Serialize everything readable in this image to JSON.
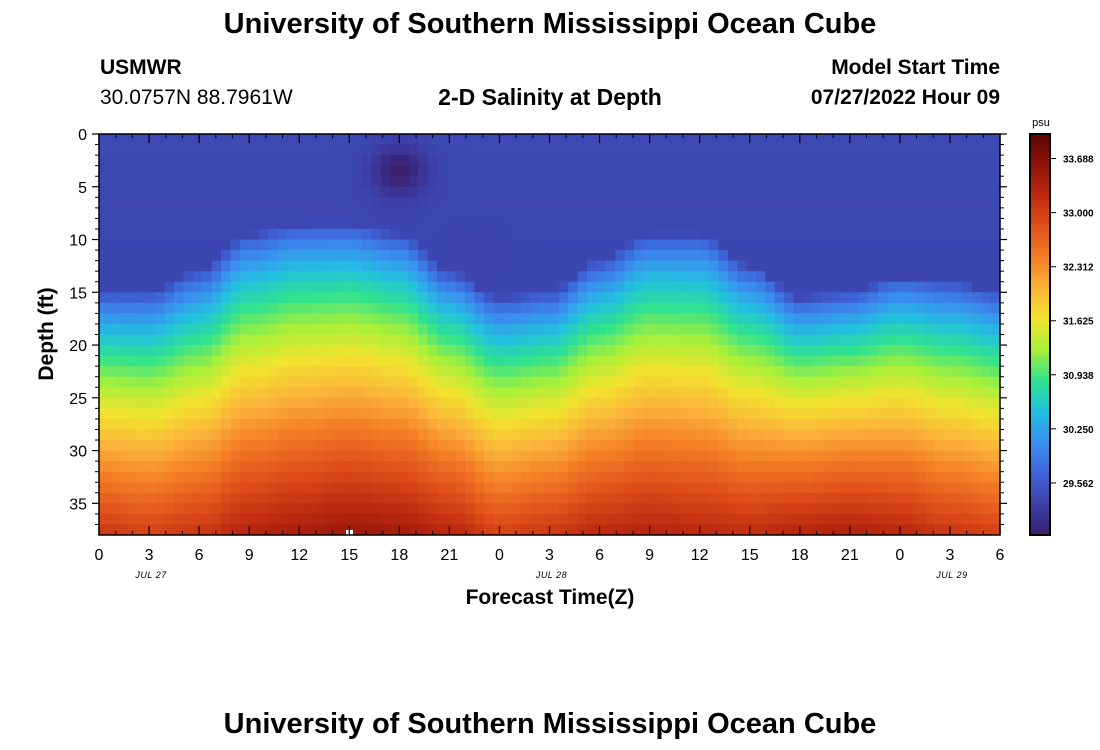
{
  "header": {
    "title": "University of Southern Mississippi Ocean Cube",
    "station_name": "USMWR",
    "station_coords": "30.0757N  88.7961W",
    "subtitle": "2-D Salinity at Depth",
    "model_start_label": "Model Start Time",
    "model_start_value": "07/27/2022 Hour 09"
  },
  "footer": {
    "title": "University of Southern Mississippi Ocean Cube"
  },
  "chart_data": {
    "type": "heatmap",
    "title": "2-D Salinity at Depth",
    "xlabel": "Forecast Time(Z)",
    "ylabel": "Depth (ft)",
    "x_tick_labels": [
      "0",
      "3",
      "6",
      "9",
      "12",
      "15",
      "18",
      "21",
      "0",
      "3",
      "6",
      "9",
      "12",
      "15",
      "18",
      "21",
      "0",
      "3",
      "6"
    ],
    "x_range_hours": [
      0,
      54
    ],
    "date_labels": [
      {
        "label": "JUL 27",
        "hour": 3
      },
      {
        "label": "JUL 28",
        "hour": 27
      },
      {
        "label": "JUL 29",
        "hour": 51
      }
    ],
    "y_tick_labels": [
      "0",
      "5",
      "10",
      "15",
      "20",
      "25",
      "30",
      "35"
    ],
    "y_range_ft": [
      0,
      38
    ],
    "colorbar": {
      "unit": "psu",
      "min": 28.9,
      "max": 34.0,
      "tick_labels": [
        "33.688",
        "33.000",
        "32.312",
        "31.625",
        "30.938",
        "30.250",
        "29.562"
      ],
      "tick_values": [
        33.688,
        33.0,
        32.312,
        31.625,
        30.938,
        30.25,
        29.562
      ],
      "colors": [
        "#3a1f6e",
        "#3c3fa8",
        "#3e63d6",
        "#3a8fef",
        "#23c0e0",
        "#2fe28f",
        "#a6f03a",
        "#f2e42e",
        "#fbb53a",
        "#f47d26",
        "#e0501a",
        "#bd2a10",
        "#8e1208",
        "#5c0505"
      ]
    },
    "cross_section": {
      "description_hours": [
        0,
        3,
        6,
        9,
        12,
        15,
        18,
        21,
        24,
        27,
        30,
        33,
        36,
        39,
        42,
        45,
        48,
        51,
        54
      ],
      "boundary_depth_ft": [
        23,
        23,
        21,
        17.5,
        16.5,
        16.5,
        17.5,
        21,
        23.5,
        23,
        20,
        17.5,
        17.5,
        20.5,
        23.5,
        23,
        21.5,
        22,
        23
      ],
      "bottom_salinity_psu": [
        33.3,
        33.2,
        33.3,
        33.5,
        33.6,
        33.7,
        33.65,
        33.5,
        33.2,
        33.3,
        33.45,
        33.5,
        33.45,
        33.4,
        33.55,
        33.6,
        33.5,
        33.3,
        33.2
      ],
      "surface_salinity_psu": 29.4,
      "low_salinity_patches": [
        {
          "hour": 18,
          "depth_ft": 3.5,
          "salinity_psu": 28.9
        },
        {
          "hour": 22.5,
          "depth_ft": 10.5,
          "salinity_psu": 29.35
        }
      ]
    }
  }
}
